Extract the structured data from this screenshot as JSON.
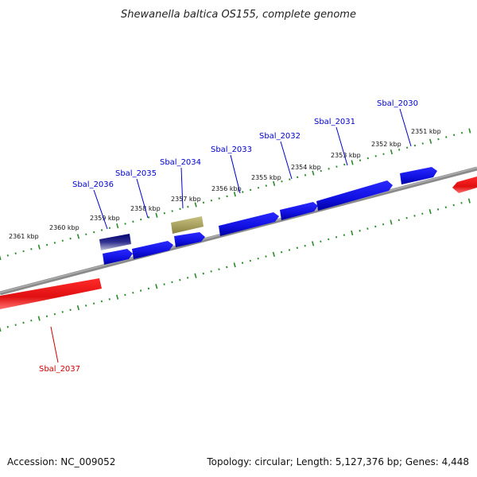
{
  "title": "Shewanella baltica OS155, complete genome",
  "accession": "Accession: NC_009052",
  "summary": "Topology: circular; Length: 5,127,376 bp; Genes: 4,448",
  "colors": {
    "forward_gene": "#1010e0",
    "reverse_gene": "#e01010",
    "highlight_gene": "#b8b070",
    "dark_gene": "#000080",
    "backbone": "#888888",
    "ruler": "#2a8a2a",
    "forward_label": "#0000cc",
    "reverse_label": "#cc0000"
  },
  "ruler_labels": [
    "2351 kbp",
    "2352 kbp",
    "2353 kbp",
    "2354 kbp",
    "2355 kbp",
    "2356 kbp",
    "2357 kbp",
    "2358 kbp",
    "2359 kbp",
    "2360 kbp",
    "2361 kbp"
  ],
  "gene_labels": [
    {
      "text": "Sbal_2030",
      "strand": "forward"
    },
    {
      "text": "Sbal_2031",
      "strand": "forward"
    },
    {
      "text": "Sbal_2032",
      "strand": "forward"
    },
    {
      "text": "Sbal_2033",
      "strand": "forward"
    },
    {
      "text": "Sbal_2034",
      "strand": "forward"
    },
    {
      "text": "Sbal_2035",
      "strand": "forward"
    },
    {
      "text": "Sbal_2036",
      "strand": "forward"
    },
    {
      "text": "Sbal_2037",
      "strand": "reverse"
    }
  ]
}
